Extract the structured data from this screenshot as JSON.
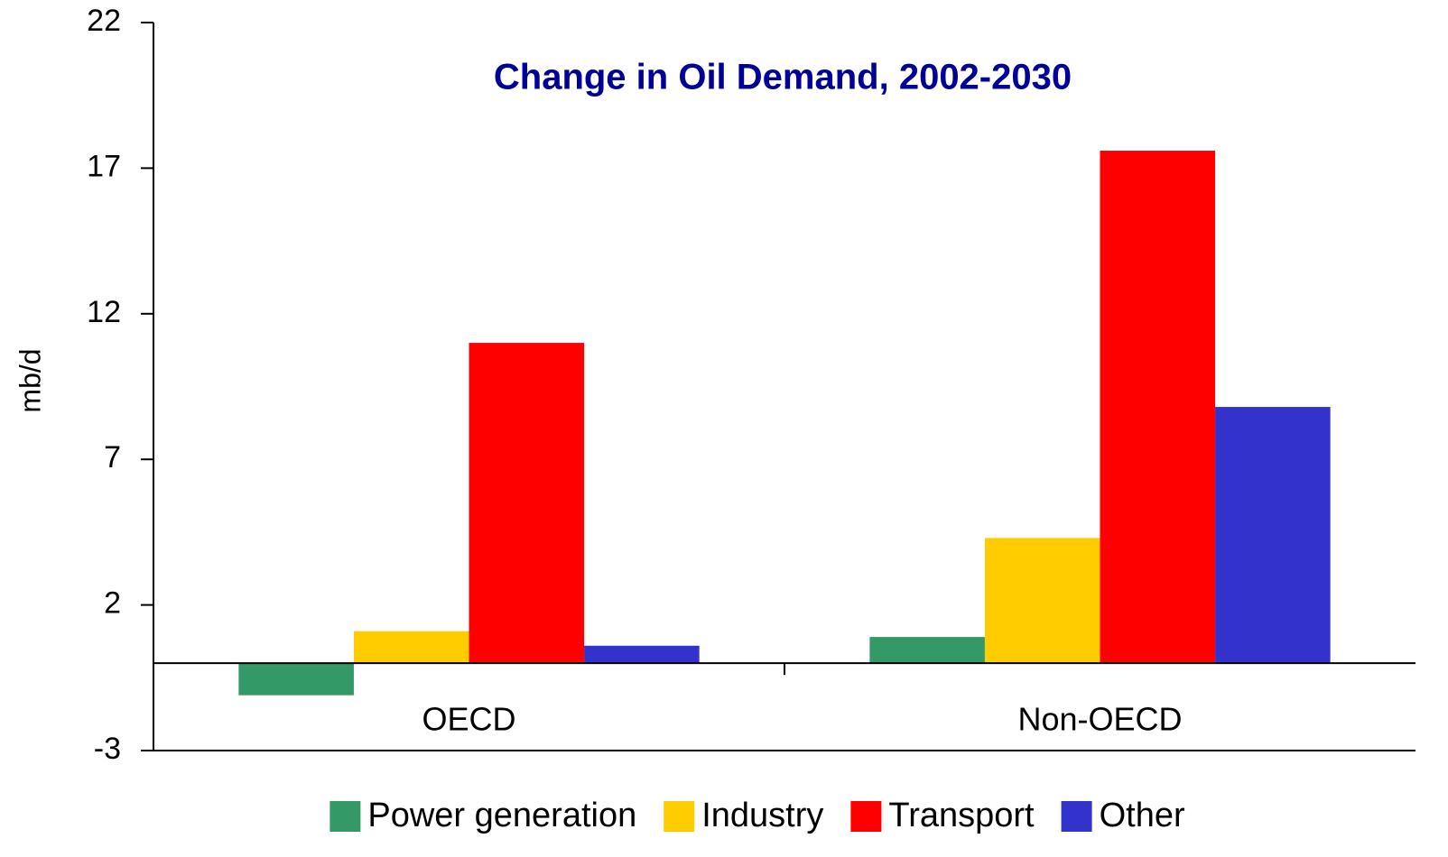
{
  "chart_data": {
    "type": "bar",
    "title": "Change in Oil Demand, 2002-2030",
    "y_label": "mb/d",
    "categories": [
      "OECD",
      "Non-OECD"
    ],
    "series": [
      {
        "name": "Power generation",
        "color": "#339966",
        "values": [
          -1.1,
          0.9
        ]
      },
      {
        "name": "Industry",
        "color": "#ffcc00",
        "values": [
          1.1,
          4.3
        ]
      },
      {
        "name": "Transport",
        "color": "#ff0000",
        "values": [
          11.0,
          17.6
        ]
      },
      {
        "name": "Other",
        "color": "#3333cc",
        "values": [
          0.6,
          8.8
        ]
      }
    ],
    "ylim": [
      -3,
      22
    ],
    "yticks": [
      -3,
      2,
      7,
      12,
      17,
      22
    ],
    "grid": false,
    "legend": "bottom"
  }
}
